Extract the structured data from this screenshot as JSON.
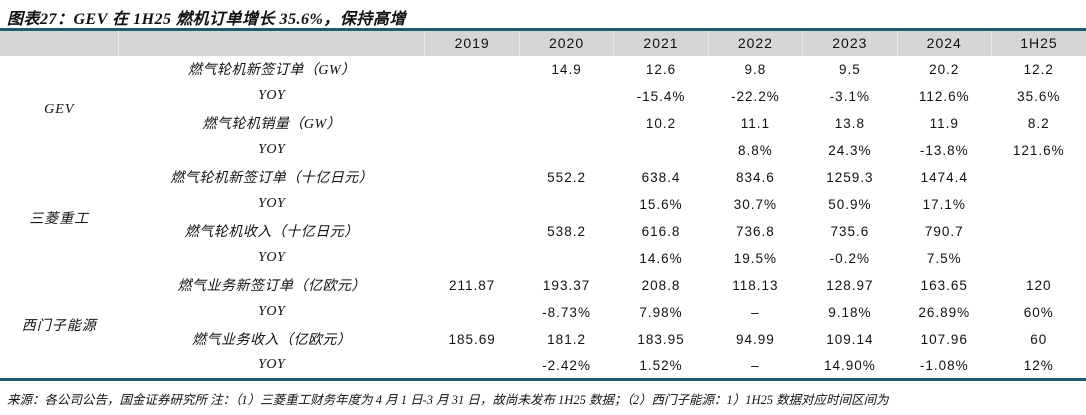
{
  "title": "图表27：GEV 在 1H25 燃机订单增长 35.6%，保持高增",
  "colors": {
    "accent_border": "#1f5b73",
    "header_bg": "#d6d6d6",
    "text": "#111111"
  },
  "table": {
    "year_headers": [
      "2019",
      "2020",
      "2021",
      "2022",
      "2023",
      "2024",
      "1H25"
    ],
    "groups": [
      {
        "company": "GEV",
        "rows": [
          {
            "metric": "燃气轮机新签订单（GW）",
            "values": [
              "",
              "14.9",
              "12.6",
              "9.8",
              "9.5",
              "20.2",
              "12.2"
            ]
          },
          {
            "metric": "YOY",
            "values": [
              "",
              "",
              "-15.4%",
              "-22.2%",
              "-3.1%",
              "112.6%",
              "35.6%"
            ]
          },
          {
            "metric": "燃气轮机销量（GW）",
            "values": [
              "",
              "",
              "10.2",
              "11.1",
              "13.8",
              "11.9",
              "8.2"
            ]
          },
          {
            "metric": "YOY",
            "values": [
              "",
              "",
              "",
              "8.8%",
              "24.3%",
              "-13.8%",
              "121.6%"
            ]
          }
        ]
      },
      {
        "company": "三菱重工",
        "rows": [
          {
            "metric": "燃气轮机新签订单（十亿日元）",
            "values": [
              "",
              "552.2",
              "638.4",
              "834.6",
              "1259.3",
              "1474.4",
              ""
            ]
          },
          {
            "metric": "YOY",
            "values": [
              "",
              "",
              "15.6%",
              "30.7%",
              "50.9%",
              "17.1%",
              ""
            ]
          },
          {
            "metric": "燃气轮机收入（十亿日元）",
            "values": [
              "",
              "538.2",
              "616.8",
              "736.8",
              "735.6",
              "790.7",
              ""
            ]
          },
          {
            "metric": "YOY",
            "values": [
              "",
              "",
              "14.6%",
              "19.5%",
              "-0.2%",
              "7.5%",
              ""
            ]
          }
        ]
      },
      {
        "company": "西门子能源",
        "rows": [
          {
            "metric": "燃气业务新签订单（亿欧元）",
            "values": [
              "211.87",
              "193.37",
              "208.8",
              "118.13",
              "128.97",
              "163.65",
              "120"
            ]
          },
          {
            "metric": "YOY",
            "values": [
              "",
              "-8.73%",
              "7.98%",
              "–",
              "9.18%",
              "26.89%",
              "60%"
            ]
          },
          {
            "metric": "燃气业务收入（亿欧元）",
            "values": [
              "185.69",
              "181.2",
              "183.95",
              "94.99",
              "109.14",
              "107.96",
              "60"
            ]
          },
          {
            "metric": "YOY",
            "values": [
              "",
              "-2.42%",
              "1.52%",
              "–",
              "14.90%",
              "-1.08%",
              "12%"
            ]
          }
        ]
      }
    ]
  },
  "footer": "来源：各公司公告，国金证券研究所  注：（1）三菱重工财务年度为 4 月 1 日-3 月 31 日，故尚未发布 1H25 数据；（2）西门子能源：1）1H25 数据对应时间区间为"
}
